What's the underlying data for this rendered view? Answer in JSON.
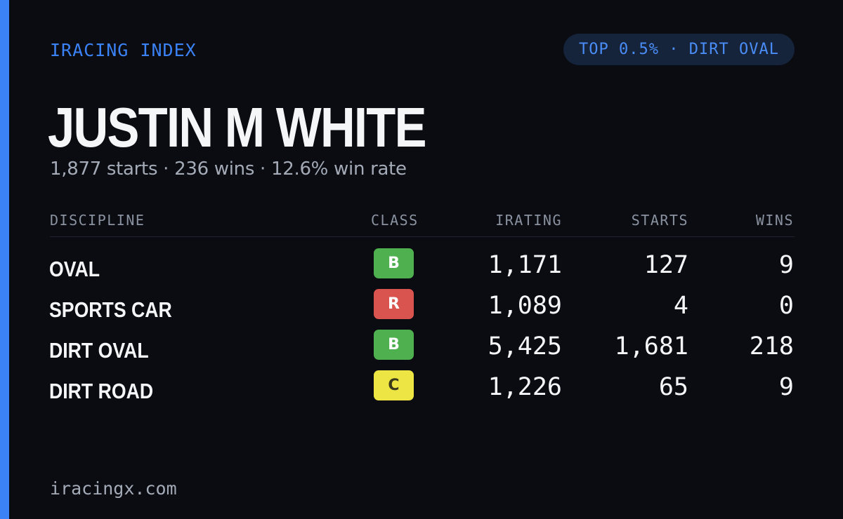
{
  "brand": "IRACING INDEX",
  "rank_badge": "TOP 0.5% · DIRT OVAL",
  "driver": {
    "name": "JUSTIN M WHITE",
    "summary": "1,877 starts · 236 wins · 12.6% win rate"
  },
  "table": {
    "headers": {
      "discipline": "DISCIPLINE",
      "class": "CLASS",
      "irating": "IRATING",
      "starts": "STARTS",
      "wins": "WINS"
    },
    "rows": [
      {
        "discipline": "OVAL",
        "class": "B",
        "irating": "1,171",
        "starts": "127",
        "wins": "9"
      },
      {
        "discipline": "SPORTS CAR",
        "class": "R",
        "irating": "1,089",
        "starts": "4",
        "wins": "0"
      },
      {
        "discipline": "DIRT OVAL",
        "class": "B",
        "irating": "5,425",
        "starts": "1,681",
        "wins": "218"
      },
      {
        "discipline": "DIRT ROAD",
        "class": "C",
        "irating": "1,226",
        "starts": "65",
        "wins": "9"
      }
    ]
  },
  "class_colors": {
    "B": {
      "bg": "#4fb04f",
      "fg": "#ffffff"
    },
    "R": {
      "bg": "#d9534f",
      "fg": "#ffffff"
    },
    "C": {
      "bg": "#ece544",
      "fg": "#3a3a1a"
    }
  },
  "colors": {
    "accent": "#3b82f6",
    "background": "#0a0c12",
    "text": "#f5f6f8",
    "muted": "#a4abb7"
  },
  "footer": "iracingx.com"
}
